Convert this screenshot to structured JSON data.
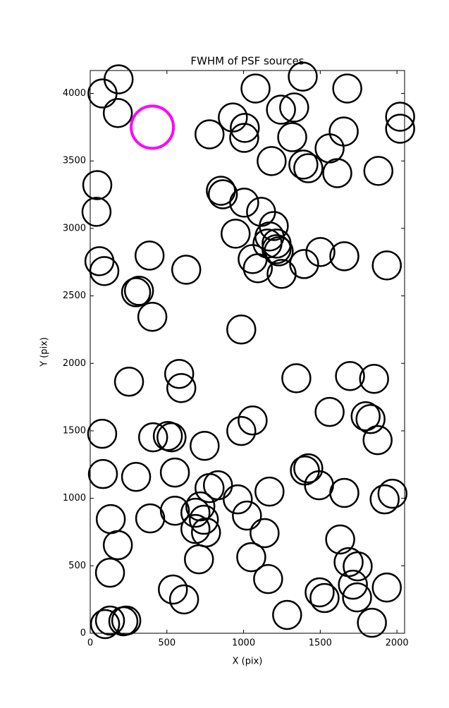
{
  "chart_data": {
    "type": "scatter",
    "title": "FWHM of PSF sources",
    "x_label": "X (pix)",
    "y_label": "Y (pix)",
    "xlim": [
      0,
      2050
    ],
    "ylim": [
      0,
      4170
    ],
    "xticks": [
      0,
      500,
      1000,
      1500,
      2000
    ],
    "yticks": [
      0,
      500,
      1000,
      1500,
      2000,
      2500,
      3000,
      3500,
      4000
    ],
    "grid": false,
    "series": [
      {
        "color": "#000000",
        "x": [
          80,
          185,
          180,
          778,
          930,
          1008,
          1004,
          1078,
          1244,
          1330,
          1317,
          1183,
          1386,
          1676,
          1390,
          1422,
          1561,
          1611,
          1653,
          1879,
          2021,
          2021,
          46,
          41,
          852,
          865,
          1004,
          1114,
          948,
          1197,
          1169,
          1215,
          1229,
          1156,
          1059,
          1093,
          1248,
          1215,
          1395,
          1501,
          1657,
          1934,
          60,
          92,
          387,
          626,
          299,
          318,
          405,
          985,
          580,
          594,
          253,
          1344,
          1694,
          1851,
          1561,
          1796,
          1828,
          1874,
          78,
          410,
          506,
          530,
          746,
          1059,
          985,
          83,
          299,
          552,
          1400,
          1422,
          1492,
          1169,
          778,
          833,
          962,
          1022,
          1657,
          1920,
          1971,
          134,
          391,
          552,
          686,
          718,
          741,
          755,
          686,
          180,
          1137,
          709,
          1050,
          1630,
          1685,
          1744,
          1713,
          1740,
          1934,
          1496,
          1528,
          1160,
          129,
          539,
          612,
          1284,
          1837,
          97,
          129,
          216,
          235
        ],
        "y": [
          4000,
          4105,
          3855,
          3697,
          3822,
          3745,
          3671,
          4037,
          3880,
          3896,
          3676,
          3499,
          4125,
          4037,
          3473,
          3446,
          3593,
          3410,
          3718,
          3426,
          3828,
          3739,
          3321,
          3123,
          3279,
          3253,
          3191,
          3123,
          2961,
          3018,
          2940,
          2888,
          2830,
          2888,
          2773,
          2705,
          2663,
          2846,
          2736,
          2825,
          2794,
          2726,
          2757,
          2684,
          2799,
          2694,
          2527,
          2538,
          2345,
          2251,
          1922,
          1817,
          1864,
          1890,
          1906,
          1885,
          1640,
          1608,
          1587,
          1431,
          1478,
          1452,
          1462,
          1452,
          1389,
          1577,
          1499,
          1180,
          1159,
          1191,
          1206,
          1222,
          1097,
          1050,
          1076,
          1097,
          992,
          872,
          1040,
          992,
          1034,
          846,
          851,
          908,
          893,
          940,
          841,
          747,
          773,
          653,
          742,
          548,
          564,
          695,
          527,
          496,
          360,
          266,
          339,
          303,
          261,
          402,
          449,
          324,
          251,
          136,
          78,
          68,
          94,
          89,
          94
        ]
      },
      {
        "color": "#ff00ff",
        "x": [
          405
        ],
        "y": [
          3750
        ]
      }
    ]
  }
}
